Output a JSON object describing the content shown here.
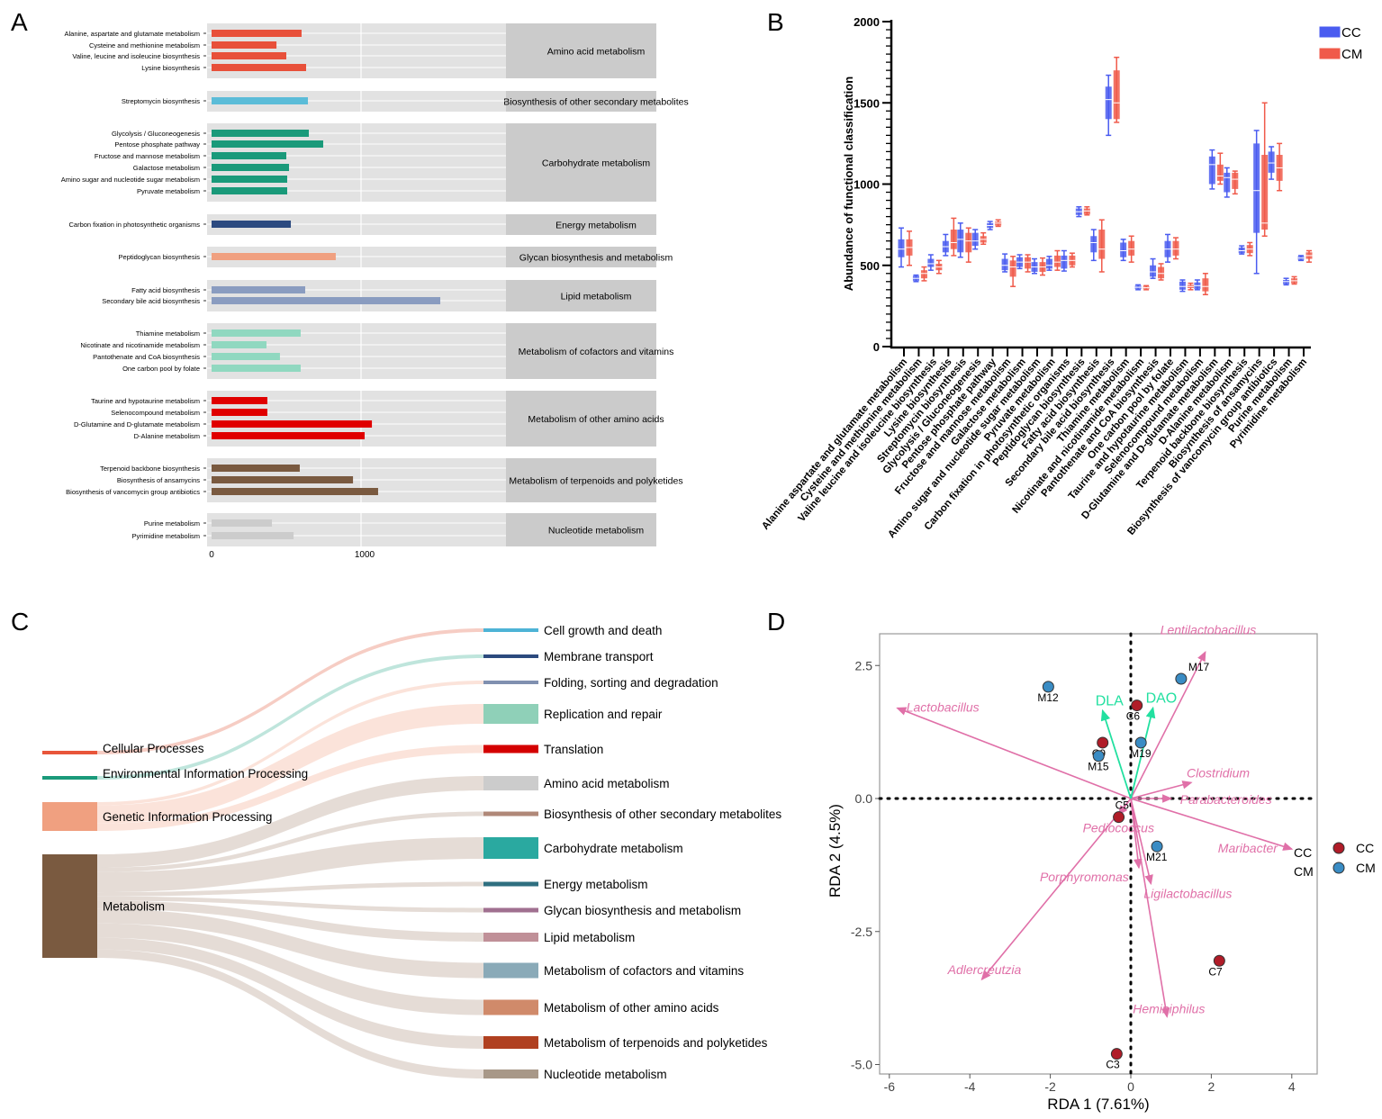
{
  "chart_data": [
    {
      "panel": "A",
      "type": "bar",
      "orientation": "horizontal",
      "xlim": [
        0,
        2000
      ],
      "xticks": [
        "0",
        "1000"
      ],
      "groups": [
        {
          "name": "Amino acid metabolism",
          "color": "#e8503a",
          "items": [
            [
              "Alanine, aspartate and glutamate metabolism",
              595
            ],
            [
              "Cysteine and methionine metabolism",
              429
            ],
            [
              "Valine, leucine and isoleucine biosynthesis",
              494
            ],
            [
              "Lysine biosynthesis",
              625
            ]
          ]
        },
        {
          "name": "Biosynthesis of other secondary metabolites",
          "color": "#5bbcd8",
          "items": [
            [
              "Streptomycin biosynthesis",
              637
            ]
          ]
        },
        {
          "name": "Carbohydrate metabolism",
          "color": "#1a9a7a",
          "items": [
            [
              "Glycolysis / Gluconeogenesis",
              643
            ],
            [
              "Pentose phosphate pathway",
              738
            ],
            [
              "Fructose and mannose metabolism",
              494
            ],
            [
              "Galactose metabolism",
              512
            ],
            [
              "Amino sugar and nucleotide sugar metabolism",
              500
            ],
            [
              "Pyruvate metabolism",
              500
            ]
          ]
        },
        {
          "name": "Energy metabolism",
          "color": "#2c4a80",
          "items": [
            [
              "Carbon fixation in photosynthetic organisms",
              524
            ]
          ]
        },
        {
          "name": "Glycan biosynthesis and metabolism",
          "color": "#f0a080",
          "items": [
            [
              "Peptidoglycan biosynthesis",
              821
            ]
          ]
        },
        {
          "name": "Lipid metabolism",
          "color": "#8a9cc0",
          "items": [
            [
              "Fatty acid biosynthesis",
              619
            ],
            [
              "Secondary bile acid biosynthesis",
              1512
            ]
          ]
        },
        {
          "name": "Metabolism of cofactors and vitamins",
          "color": "#90d8c0",
          "items": [
            [
              "Thiamine metabolism",
              589
            ],
            [
              "Nicotinate and nicotinamide metabolism",
              363
            ],
            [
              "Pantothenate and CoA biosynthesis",
              452
            ],
            [
              "One carbon pool by folate",
              589
            ]
          ]
        },
        {
          "name": "Metabolism of other amino acids",
          "color": "#e00000",
          "items": [
            [
              "Taurine and hypotaurine metabolism",
              369
            ],
            [
              "Selenocompound metabolism",
              369
            ],
            [
              "D-Glutamine and D-glutamate metabolism",
              1060
            ],
            [
              "D-Alanine metabolism",
              1012
            ]
          ]
        },
        {
          "name": "Metabolism of terpenoids and polyketides",
          "color": "#7a5a40",
          "items": [
            [
              "Terpenoid backbone biosynthesis",
              583
            ],
            [
              "Biosynthesis of ansamycins",
              935
            ],
            [
              "Biosynthesis of vancomycin group antibiotics",
              1101
            ]
          ]
        },
        {
          "name": "Nucleotide metabolism",
          "color": "#cccccc",
          "items": [
            [
              "Purine metabolism",
              399
            ],
            [
              "Pyrimidine metabolism",
              542
            ]
          ]
        }
      ]
    },
    {
      "panel": "B",
      "type": "box",
      "ylabel": "Abundance of functional classification",
      "ylim": [
        0,
        2000
      ],
      "yticks": [
        "0",
        "500",
        "1000",
        "1500",
        "2000"
      ],
      "legend": {
        "position": "top-right",
        "entries": [
          {
            "name": "CC",
            "color": "#4a5cf0"
          },
          {
            "name": "CM",
            "color": "#f05a4a"
          }
        ]
      },
      "categories": [
        "Alanine aspartate and glutamate metabolism",
        "Cysteine and methionine metabolism",
        "Valine leucine and isoleucine biosynthesis",
        "Lysine biosynthesis",
        "Streptomycin biosynthesis",
        "Glycolysis / Gluconeogenesis",
        "Pentose phosphate pathway",
        "Fructose and mannose metabolism",
        "Galactose metabolism",
        "Amino sugar and nucleotide sugar metabolism",
        "Pyruvate metabolism",
        "Carbon fixation in photosynthetic organisms",
        "Peptidoglycan biosynthesis",
        "Fatty acid biosynthesis",
        "Secondary bile acid biosynthesis",
        "Thiamine metabolism",
        "Nicotinate and nicotinamide metabolism",
        "Pantothenate and CoA biosynthesis",
        "One carbon pool by folate",
        "Taurine and hypotaurine metabolism",
        "Selenocompound metabolism",
        "D-Glutamine and D-glutamate metabolism",
        "D-Alanine metabolism",
        "Terpenoid backbone biosynthesis",
        "Biosynthesis of ansamycins",
        "Biosynthesis of vancomycin group antibiotics",
        "Purine metabolism",
        "Pyrimidine metabolism"
      ],
      "series_fields": [
        "min",
        "q1",
        "median",
        "q3",
        "max"
      ],
      "series": [
        {
          "name": "CC",
          "values": [
            [
              490,
              550,
              600,
              660,
              730
            ],
            [
              400,
              405,
              420,
              435,
              440
            ],
            [
              470,
              490,
              510,
              540,
              565
            ],
            [
              560,
              580,
              615,
              650,
              690
            ],
            [
              550,
              580,
              660,
              720,
              760
            ],
            [
              600,
              620,
              650,
              700,
              720
            ],
            [
              720,
              730,
              745,
              760,
              770
            ],
            [
              460,
              470,
              500,
              540,
              570
            ],
            [
              480,
              490,
              520,
              550,
              565
            ],
            [
              450,
              460,
              490,
              520,
              540
            ],
            [
              470,
              480,
              500,
              540,
              555
            ],
            [
              465,
              480,
              530,
              560,
              590
            ],
            [
              800,
              810,
              830,
              850,
              860
            ],
            [
              530,
              580,
              640,
              680,
              720
            ],
            [
              1300,
              1400,
              1520,
              1600,
              1670
            ],
            [
              530,
              550,
              590,
              640,
              660
            ],
            [
              350,
              355,
              365,
              375,
              380
            ],
            [
              420,
              430,
              460,
              500,
              540
            ],
            [
              520,
              550,
              600,
              650,
              690
            ],
            [
              340,
              350,
              370,
              400,
              410
            ],
            [
              350,
              355,
              375,
              395,
              410
            ],
            [
              970,
              1000,
              1120,
              1170,
              1210
            ],
            [
              920,
              950,
              1040,
              1070,
              1100
            ],
            [
              570,
              575,
              590,
              610,
              620
            ],
            [
              450,
              700,
              960,
              1250,
              1330
            ],
            [
              1030,
              1070,
              1130,
              1200,
              1230
            ],
            [
              380,
              385,
              400,
              410,
              420
            ],
            [
              530,
              535,
              545,
              555,
              560
            ]
          ]
        },
        {
          "name": "CM",
          "values": [
            [
              500,
              560,
              610,
              660,
              710
            ],
            [
              405,
              420,
              450,
              470,
              490
            ],
            [
              450,
              470,
              490,
              510,
              530
            ],
            [
              560,
              600,
              640,
              720,
              790
            ],
            [
              520,
              580,
              650,
              700,
              730
            ],
            [
              630,
              640,
              660,
              680,
              700
            ],
            [
              740,
              745,
              760,
              770,
              780
            ],
            [
              370,
              430,
              490,
              530,
              555
            ],
            [
              460,
              480,
              520,
              550,
              565
            ],
            [
              440,
              460,
              490,
              520,
              545
            ],
            [
              470,
              490,
              520,
              560,
              590
            ],
            [
              490,
              500,
              530,
              560,
              575
            ],
            [
              810,
              815,
              835,
              850,
              860
            ],
            [
              460,
              540,
              600,
              720,
              780
            ],
            [
              1380,
              1400,
              1500,
              1700,
              1780
            ],
            [
              520,
              560,
              600,
              650,
              680
            ],
            [
              350,
              355,
              362,
              370,
              375
            ],
            [
              410,
              420,
              450,
              490,
              510
            ],
            [
              540,
              560,
              600,
              650,
              670
            ],
            [
              350,
              360,
              370,
              380,
              390
            ],
            [
              320,
              340,
              370,
              420,
              450
            ],
            [
              1000,
              1020,
              1050,
              1120,
              1190
            ],
            [
              940,
              970,
              1030,
              1070,
              1080
            ],
            [
              560,
              575,
              600,
              625,
              640
            ],
            [
              680,
              720,
              760,
              1180,
              1500
            ],
            [
              960,
              1020,
              1100,
              1180,
              1250
            ],
            [
              385,
              390,
              405,
              420,
              430
            ],
            [
              520,
              540,
              560,
              580,
              590
            ]
          ]
        }
      ]
    },
    {
      "panel": "C",
      "type": "sankey",
      "sources": [
        {
          "name": "Cellular Processes",
          "color": "#e8553a",
          "flow_color": "#f5c8be"
        },
        {
          "name": "Environmental Information Processing",
          "color": "#1a9a7a",
          "flow_color": "#b8e2d8"
        },
        {
          "name": "Genetic Information Processing",
          "color": "#f0a080",
          "flow_color": "#fbe0d6"
        },
        {
          "name": "Metabolism",
          "color": "#7a5a40",
          "flow_color": "#e2d8d2"
        }
      ],
      "targets": [
        {
          "name": "Cell growth and death",
          "source": 0,
          "value": 4,
          "color": "#4db3d6"
        },
        {
          "name": "Membrane transport",
          "source": 1,
          "value": 4,
          "color": "#2c4a7e"
        },
        {
          "name": "Folding, sorting and degradation",
          "source": 2,
          "value": 4,
          "color": "#8090b0"
        },
        {
          "name": "Replication and repair",
          "source": 2,
          "value": 22,
          "color": "#8fd0b8"
        },
        {
          "name": "Translation",
          "source": 2,
          "value": 9,
          "color": "#d40000"
        },
        {
          "name": "Amino acid metabolism",
          "source": 3,
          "value": 16,
          "color": "#cccccc"
        },
        {
          "name": "Biosynthesis of other secondary metabolites",
          "source": 3,
          "value": 5,
          "color": "#b08878"
        },
        {
          "name": "Carbohydrate metabolism",
          "source": 3,
          "value": 24,
          "color": "#2aa9a0"
        },
        {
          "name": "Energy metabolism",
          "source": 3,
          "value": 5,
          "color": "#2f6f80"
        },
        {
          "name": "Glycan biosynthesis and metabolism",
          "source": 3,
          "value": 5,
          "color": "#a07090"
        },
        {
          "name": "Lipid metabolism",
          "source": 3,
          "value": 10,
          "color": "#c09098"
        },
        {
          "name": "Metabolism of cofactors and vitamins",
          "source": 3,
          "value": 17,
          "color": "#8aaab8"
        },
        {
          "name": "Metabolism of other amino acids",
          "source": 3,
          "value": 17,
          "color": "#d08a6a"
        },
        {
          "name": "Metabolism of terpenoids and polyketides",
          "source": 3,
          "value": 14,
          "color": "#b04020"
        },
        {
          "name": "Nucleotide metabolism",
          "source": 3,
          "value": 10,
          "color": "#a89888"
        }
      ]
    },
    {
      "panel": "D",
      "type": "scatter",
      "xlabel": "RDA 1 (7.61%)",
      "ylabel": "RDA 2 (4.5%)",
      "xlim": [
        -6.4,
        4.6
      ],
      "ylim": [
        -5.2,
        3.1
      ],
      "xticks": [
        -6,
        -4,
        -2,
        0,
        2,
        4
      ],
      "yticks": [
        2.5,
        0.0,
        -2.5,
        -5.0
      ],
      "ytick_labels": [
        "2.5",
        "0.0",
        "-2.5",
        "-5.0"
      ],
      "legend": {
        "position": "right",
        "entries": [
          {
            "name": "CC",
            "color": "#b01c28"
          },
          {
            "name": "CM",
            "color": "#3a8cc4"
          }
        ]
      },
      "points": [
        {
          "label": "M12",
          "group": "CM",
          "x": -2.05,
          "y": 2.1
        },
        {
          "label": "M17",
          "group": "CM",
          "x": 1.25,
          "y": 2.25
        },
        {
          "label": "C6",
          "group": "CC",
          "x": 0.15,
          "y": 1.75
        },
        {
          "label": "C9",
          "group": "CC",
          "x": -0.7,
          "y": 1.05
        },
        {
          "label": "M19",
          "group": "CM",
          "x": 0.25,
          "y": 1.05
        },
        {
          "label": "M15",
          "group": "CM",
          "x": -0.8,
          "y": 0.8
        },
        {
          "label": "C5",
          "group": "CC",
          "x": -0.3,
          "y": -0.35
        },
        {
          "label": "M21",
          "group": "CM",
          "x": 0.65,
          "y": -0.9
        },
        {
          "label": "C7",
          "group": "CC",
          "x": 2.2,
          "y": -3.05
        },
        {
          "label": "C3",
          "group": "CC",
          "x": -0.35,
          "y": -4.8
        }
      ],
      "species_arrows": [
        {
          "label": "Lentilactobacillus",
          "x": 1.85,
          "y": 2.75
        },
        {
          "label": "Lactobacillus",
          "x": -5.8,
          "y": 1.7
        },
        {
          "label": "Clostridium",
          "x": 1.5,
          "y": 0.3
        },
        {
          "label": "Parabacteroides",
          "x": 1.0,
          "y": 0.0
        },
        {
          "label": "Maribacter",
          "x": 4.0,
          "y": -0.95
        },
        {
          "label": "Pediococcus",
          "x": -0.3,
          "y": -0.3
        },
        {
          "label": "Porphyromonas",
          "x": 0.2,
          "y": -1.3
        },
        {
          "label": "Ligilactobacillus",
          "x": 0.5,
          "y": -1.6
        },
        {
          "label": "Adlercreutzia",
          "x": -3.7,
          "y": -3.4
        },
        {
          "label": "Heminiphilus",
          "x": 0.9,
          "y": -4.1
        }
      ],
      "env_arrows": [
        {
          "label": "DLA",
          "x": -0.7,
          "y": 1.65
        },
        {
          "label": "DAO",
          "x": 0.55,
          "y": 1.7
        }
      ],
      "env_color": "#22e0a0",
      "species_color": "#e070a8",
      "extra_labels": [
        "CC",
        "CM"
      ]
    }
  ],
  "panel_labels": [
    "A",
    "B",
    "C",
    "D"
  ]
}
